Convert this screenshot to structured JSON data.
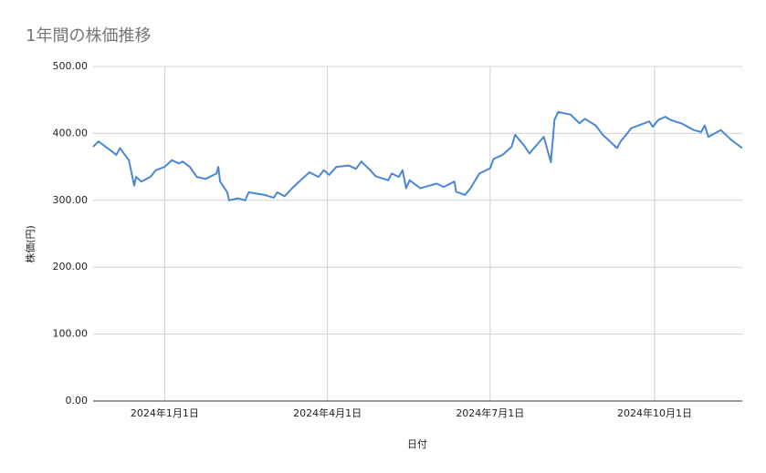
{
  "chart_data": {
    "type": "line",
    "title": "1年間の株価推移",
    "x_label": "日付",
    "y_label": "株価(円)",
    "x": [
      "2023-11-22",
      "2023-11-25",
      "2023-11-30",
      "2023-12-05",
      "2023-12-07",
      "2023-12-12",
      "2023-12-15",
      "2023-12-16",
      "2023-12-19",
      "2023-12-24",
      "2023-12-27",
      "2024-01-01",
      "2024-01-05",
      "2024-01-09",
      "2024-01-11",
      "2024-01-15",
      "2024-01-19",
      "2024-01-24",
      "2024-01-30",
      "2024-01-31",
      "2024-02-01",
      "2024-02-05",
      "2024-02-06",
      "2024-02-11",
      "2024-02-15",
      "2024-02-17",
      "2024-02-26",
      "2024-03-02",
      "2024-03-04",
      "2024-03-08",
      "2024-03-13",
      "2024-03-17",
      "2024-03-22",
      "2024-03-27",
      "2024-03-30",
      "2024-04-02",
      "2024-04-06",
      "2024-04-13",
      "2024-04-17",
      "2024-04-20",
      "2024-04-25",
      "2024-04-28",
      "2024-05-05",
      "2024-05-07",
      "2024-05-11",
      "2024-05-13",
      "2024-05-15",
      "2024-05-17",
      "2024-05-23",
      "2024-05-28",
      "2024-06-01",
      "2024-06-05",
      "2024-06-11",
      "2024-06-12",
      "2024-06-17",
      "2024-06-20",
      "2024-06-25",
      "2024-07-01",
      "2024-07-03",
      "2024-07-08",
      "2024-07-13",
      "2024-07-15",
      "2024-07-20",
      "2024-07-23",
      "2024-07-31",
      "2024-08-04",
      "2024-08-06",
      "2024-08-08",
      "2024-08-15",
      "2024-08-20",
      "2024-08-23",
      "2024-08-29",
      "2024-09-02",
      "2024-09-10",
      "2024-09-12",
      "2024-09-18",
      "2024-09-25",
      "2024-09-28",
      "2024-09-30",
      "2024-10-03",
      "2024-10-07",
      "2024-10-10",
      "2024-10-16",
      "2024-10-23",
      "2024-10-27",
      "2024-10-29",
      "2024-10-31",
      "2024-11-07",
      "2024-11-13",
      "2024-11-19"
    ],
    "series": [
      {
        "name": "株価",
        "color": "#4a86d4",
        "values": [
          380,
          388,
          378,
          368,
          378,
          360,
          322,
          335,
          328,
          335,
          345,
          350,
          360,
          355,
          358,
          350,
          335,
          332,
          340,
          350,
          328,
          312,
          300,
          303,
          300,
          312,
          308,
          304,
          312,
          306,
          320,
          330,
          342,
          335,
          345,
          338,
          350,
          352,
          347,
          358,
          345,
          336,
          330,
          340,
          335,
          345,
          318,
          330,
          318,
          322,
          325,
          320,
          328,
          313,
          308,
          318,
          340,
          348,
          362,
          368,
          380,
          398,
          382,
          370,
          395,
          357,
          420,
          432,
          428,
          415,
          422,
          412,
          398,
          378,
          388,
          408,
          415,
          418,
          410,
          420,
          425,
          420,
          415,
          405,
          402,
          412,
          395,
          405,
          390,
          378
        ]
      }
    ],
    "xlim": [
      "2023-11-22",
      "2024-11-19"
    ],
    "xticks": [
      {
        "value": "2024-01-01",
        "label": "2024年1月1日"
      },
      {
        "value": "2024-04-01",
        "label": "2024年4月1日"
      },
      {
        "value": "2024-07-01",
        "label": "2024年7月1日"
      },
      {
        "value": "2024-10-01",
        "label": "2024年10月1日"
      }
    ],
    "ylim": [
      0,
      500
    ],
    "yticks": [
      {
        "value": 0,
        "label": "0.00"
      },
      {
        "value": 100,
        "label": "100.00"
      },
      {
        "value": 200,
        "label": "200.00"
      },
      {
        "value": 300,
        "label": "300.00"
      },
      {
        "value": 400,
        "label": "400.00"
      },
      {
        "value": 500,
        "label": "500.00"
      }
    ],
    "grid": true
  }
}
